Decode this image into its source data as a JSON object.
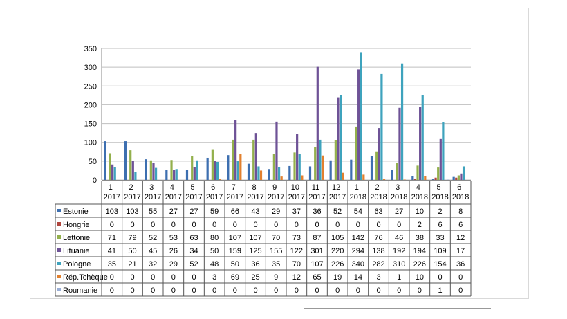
{
  "chart_data": {
    "type": "bar",
    "title": "",
    "xlabel": "",
    "ylabel": "",
    "ylim": [
      0,
      350
    ],
    "yticks": [
      "0",
      "50",
      "100",
      "150",
      "200",
      "250",
      "300",
      "350"
    ],
    "grid": true,
    "legend_placement": "data-table-left",
    "categories": [
      {
        "month": "1",
        "year": "2017"
      },
      {
        "month": "2",
        "year": "2017"
      },
      {
        "month": "3",
        "year": "2017"
      },
      {
        "month": "4",
        "year": "2017"
      },
      {
        "month": "5",
        "year": "2017"
      },
      {
        "month": "6",
        "year": "2017"
      },
      {
        "month": "7",
        "year": "2017"
      },
      {
        "month": "8",
        "year": "2017"
      },
      {
        "month": "9",
        "year": "2017"
      },
      {
        "month": "10",
        "year": "2017"
      },
      {
        "month": "11",
        "year": "2017"
      },
      {
        "month": "12",
        "year": "2017"
      },
      {
        "month": "1",
        "year": "2018"
      },
      {
        "month": "2",
        "year": "2018"
      },
      {
        "month": "3",
        "year": "2018"
      },
      {
        "month": "4",
        "year": "2018"
      },
      {
        "month": "5",
        "year": "2018"
      },
      {
        "month": "6",
        "year": "2018"
      }
    ],
    "series": [
      {
        "name": "Estonie",
        "color": "#3d6fb0",
        "values": [
          103,
          103,
          55,
          27,
          27,
          59,
          66,
          43,
          29,
          37,
          36,
          52,
          54,
          63,
          27,
          10,
          2,
          8
        ]
      },
      {
        "name": "Hongrie",
        "color": "#b0453d",
        "values": [
          0,
          0,
          0,
          0,
          0,
          0,
          0,
          0,
          0,
          0,
          0,
          0,
          0,
          0,
          0,
          2,
          6,
          6
        ]
      },
      {
        "name": "Lettonie",
        "color": "#93b04c",
        "values": [
          71,
          79,
          52,
          53,
          63,
          80,
          107,
          107,
          70,
          73,
          87,
          105,
          142,
          76,
          46,
          38,
          33,
          12
        ]
      },
      {
        "name": "Lituanie",
        "color": "#6e5296",
        "values": [
          41,
          50,
          45,
          26,
          34,
          50,
          159,
          125,
          155,
          122,
          301,
          220,
          294,
          138,
          192,
          194,
          109,
          17
        ]
      },
      {
        "name": "Pologne",
        "color": "#3ea3bd",
        "values": [
          35,
          21,
          32,
          29,
          52,
          48,
          50,
          36,
          35,
          70,
          107,
          226,
          340,
          282,
          310,
          226,
          154,
          36
        ]
      },
      {
        "name": "Rép.Tchèque",
        "color": "#e2802e",
        "values": [
          0,
          0,
          0,
          0,
          0,
          3,
          69,
          25,
          9,
          12,
          65,
          19,
          14,
          3,
          1,
          10,
          0,
          0
        ]
      },
      {
        "name": "Roumanie",
        "color": "#9aaed6",
        "values": [
          0,
          0,
          0,
          0,
          0,
          0,
          0,
          0,
          0,
          0,
          0,
          0,
          0,
          0,
          0,
          0,
          1,
          0
        ]
      }
    ]
  }
}
